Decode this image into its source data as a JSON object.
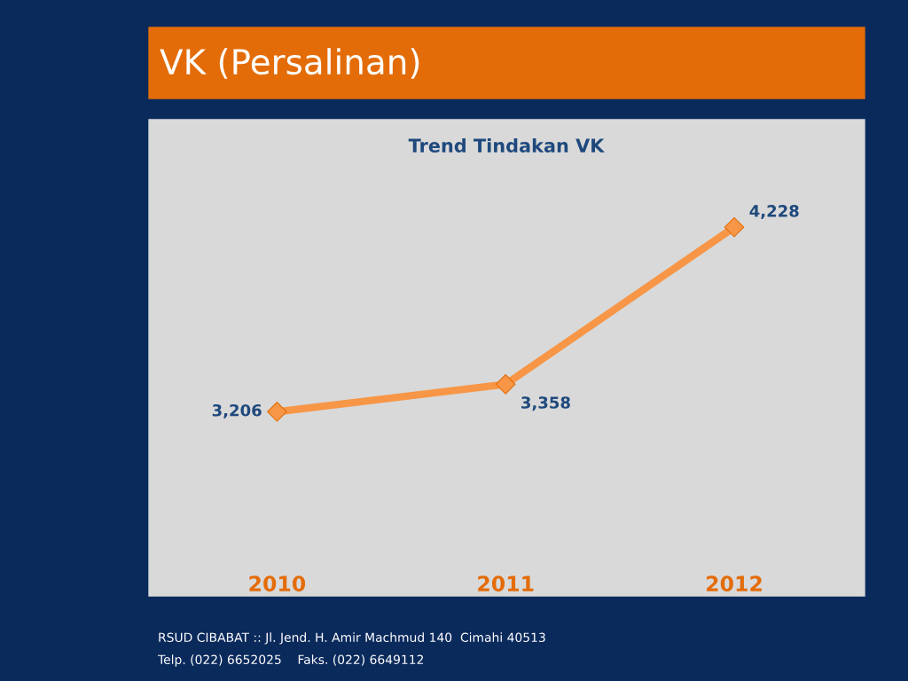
{
  "chart_data": {
    "type": "line",
    "title": "VK (Persalinan)",
    "subtitle": "Trend Tindakan VK",
    "categories": [
      "2010",
      "2011",
      "2012"
    ],
    "series": [
      {
        "color": "#f79646",
        "values": [
          3206,
          3358,
          4228
        ],
        "value_labels": [
          "3,206",
          "3,358",
          "4,228"
        ]
      }
    ],
    "marker": "diamond",
    "line_style": "solid",
    "grid": false,
    "legend": false,
    "annotations": [
      "RSUD CIBABAT :: Jl. Jend. H. Amir Machmud 140  Cimahi 40513",
      "Telp. (022) 6652025    Faks. (022) 6649112"
    ]
  }
}
